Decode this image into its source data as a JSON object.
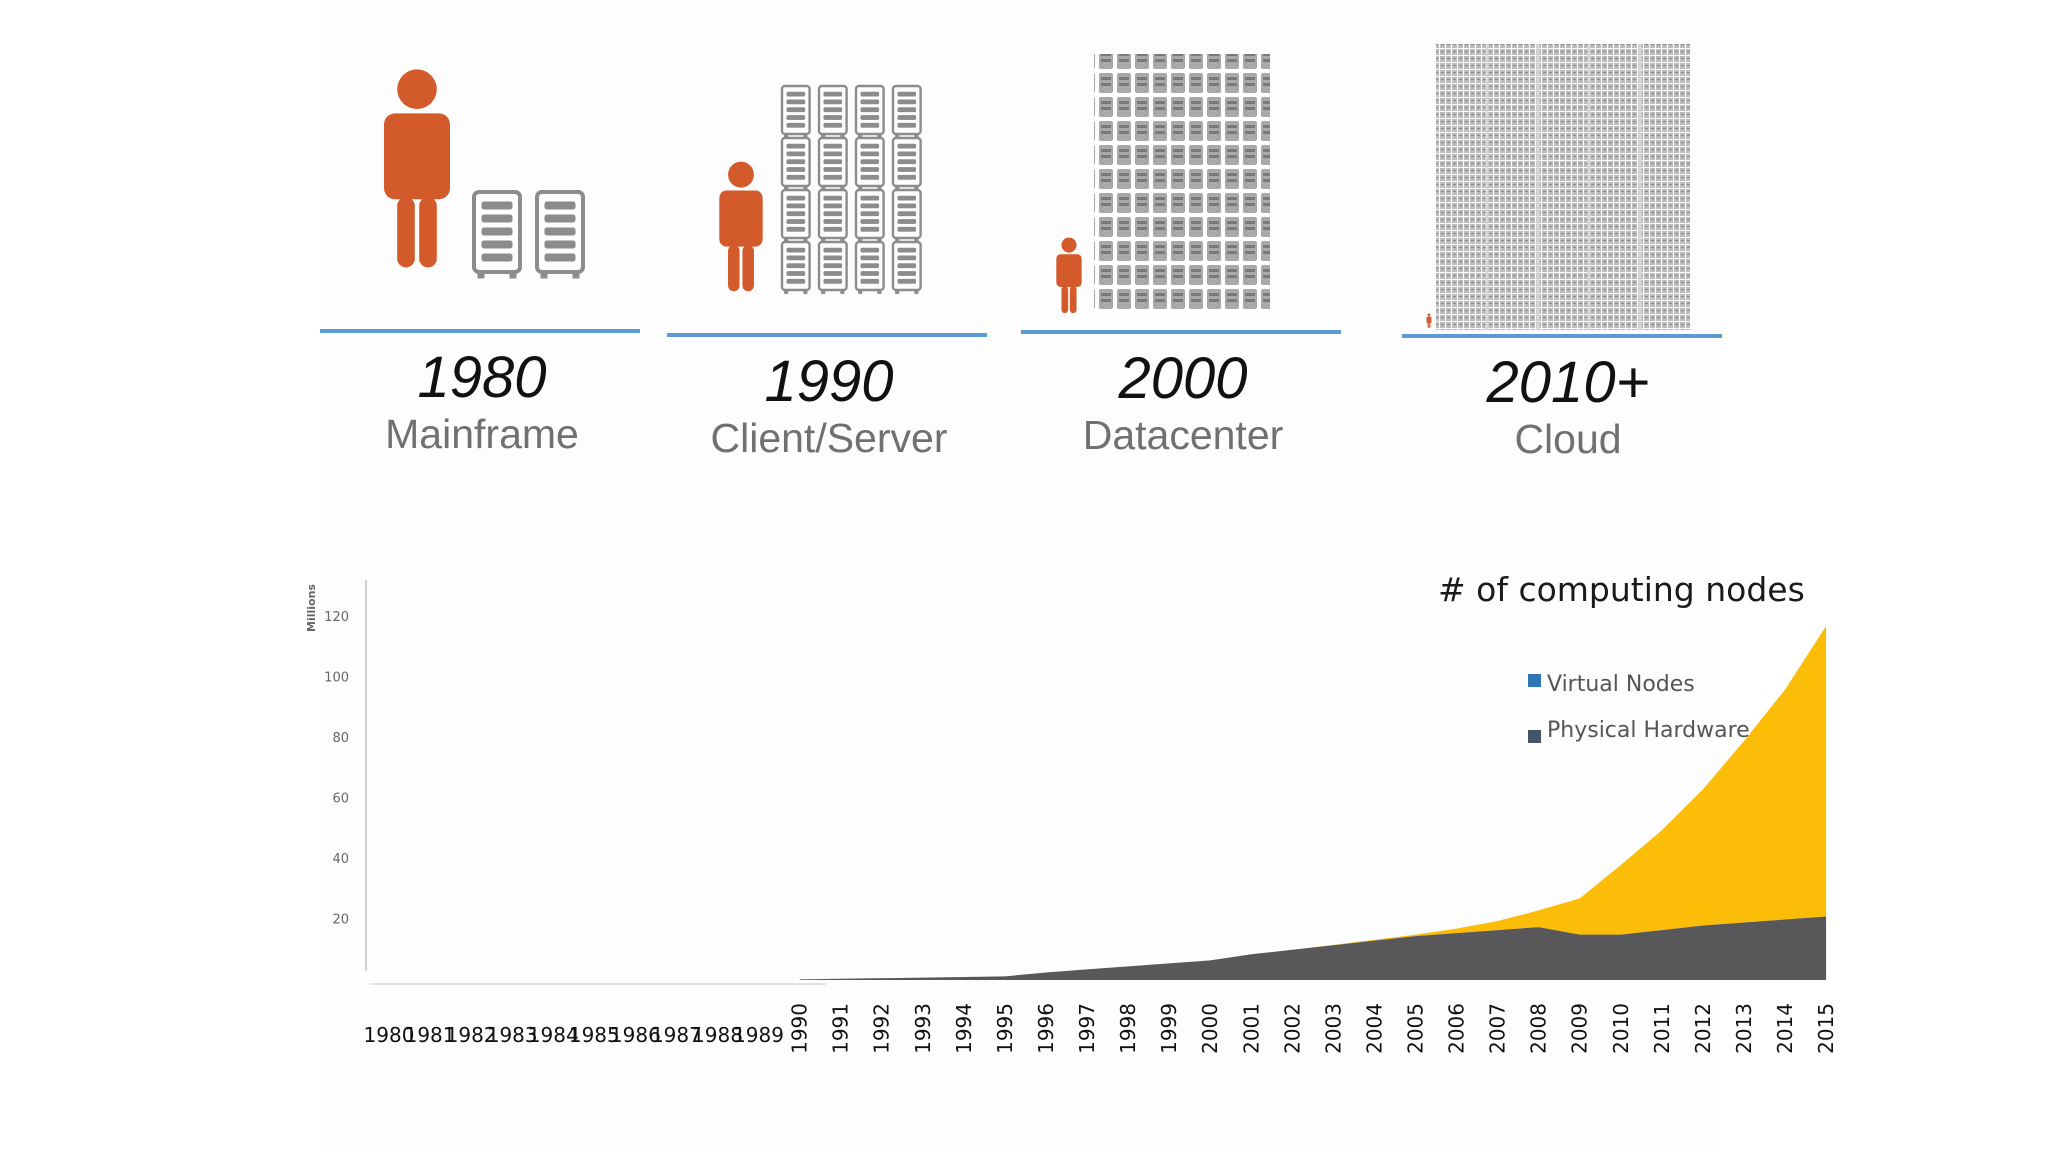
{
  "eras": [
    {
      "year": "1980",
      "label": "Mainframe"
    },
    {
      "year": "1990",
      "label": "Client/Server"
    },
    {
      "year": "2000",
      "label": "Datacenter"
    },
    {
      "year": "2010+",
      "label": "Cloud"
    }
  ],
  "icons": {
    "person": "person-icon",
    "server": "server-rack-icon"
  },
  "colors": {
    "person": "#d35a2a",
    "server": "#8c8c8c",
    "baseline": "#5b9bd5",
    "physical": "#58585a",
    "virtual": "#fbbd08",
    "legend_virtual": "#2e75b6",
    "legend_physical": "#44546a"
  },
  "chart_data": {
    "type": "area",
    "title": "# of computing nodes",
    "ylabel": "Millions",
    "ylim": [
      0,
      120
    ],
    "yticks": [
      "20",
      "40",
      "60",
      "80",
      "100",
      "120"
    ],
    "x": [
      "1980",
      "1981",
      "1982",
      "1983",
      "1984",
      "1985",
      "1986",
      "1987",
      "1988",
      "1989",
      "1990",
      "1991",
      "1992",
      "1993",
      "1994",
      "1995",
      "1996",
      "1997",
      "1998",
      "1999",
      "2000",
      "2001",
      "2002",
      "2003",
      "2004",
      "2005",
      "2006",
      "2007",
      "2008",
      "2009",
      "2010",
      "2011",
      "2012",
      "2013",
      "2014",
      "2015"
    ],
    "stacked": true,
    "legend_position": "top-right",
    "series": [
      {
        "name": "Virtual Nodes",
        "values": [
          0,
          0,
          0,
          0,
          0,
          0,
          0,
          0,
          0,
          0,
          0,
          0,
          0,
          0,
          0,
          0,
          0,
          0,
          0,
          0,
          0,
          0,
          0,
          0.1,
          0.3,
          0.5,
          1.5,
          3,
          5.5,
          12,
          23,
          33,
          45,
          60,
          76,
          96
        ]
      },
      {
        "name": "Physical Hardware",
        "values": [
          0,
          0,
          0,
          0,
          0,
          0,
          0,
          0,
          0,
          0,
          0.2,
          0.4,
          0.6,
          0.8,
          1,
          1.2,
          2.5,
          3.5,
          4.5,
          5.5,
          6.5,
          8.5,
          10,
          11.5,
          13,
          14.5,
          15.5,
          16.5,
          17.5,
          15,
          15,
          16.5,
          18,
          19,
          20,
          21
        ]
      }
    ]
  }
}
